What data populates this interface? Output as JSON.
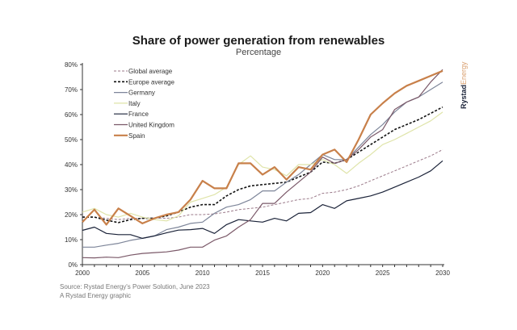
{
  "chart_data": {
    "type": "line",
    "title": "Share of power generation from renewables",
    "subtitle": "Percentage",
    "xlabel": "",
    "ylabel": "",
    "xlim": [
      2000,
      2030
    ],
    "ylim": [
      0,
      80
    ],
    "x_ticks": [
      "2000",
      "2005",
      "2010",
      "2015",
      "2020",
      "2025",
      "2030"
    ],
    "y_ticks": [
      "0%",
      "10%",
      "20%",
      "30%",
      "40%",
      "50%",
      "60%",
      "70%",
      "80%"
    ],
    "legend_placement": "top-left",
    "x": [
      2000,
      2001,
      2002,
      2003,
      2004,
      2005,
      2006,
      2007,
      2008,
      2009,
      2010,
      2011,
      2012,
      2013,
      2014,
      2015,
      2016,
      2017,
      2018,
      2019,
      2020,
      2021,
      2022,
      2023,
      2024,
      2025,
      2026,
      2027,
      2028,
      2029,
      2030
    ],
    "series": [
      {
        "name": "Global average",
        "color": "#9b7a8a",
        "dash": "dashed-thin",
        "values": [
          19,
          19,
          18.5,
          18,
          18.5,
          18.5,
          18.7,
          18.5,
          19,
          20,
          20,
          20.3,
          21,
          22,
          22.5,
          23,
          24,
          25,
          26,
          26.5,
          28.5,
          29,
          30,
          31.5,
          33.5,
          35.5,
          37.5,
          39.5,
          41.5,
          43.5,
          46
        ]
      },
      {
        "name": "Europe average",
        "color": "#111111",
        "dash": "dashed-thick",
        "values": [
          19,
          19,
          17.8,
          16.8,
          18,
          18.5,
          18.5,
          19.5,
          21,
          23,
          24,
          24,
          27.5,
          30,
          31.5,
          32,
          32.5,
          33,
          35,
          37,
          41,
          40.5,
          42,
          45,
          48,
          51,
          54,
          56,
          58,
          60.5,
          63
        ]
      },
      {
        "name": "Germany",
        "color": "#7d8599",
        "dash": "solid",
        "values": [
          7,
          7,
          7.8,
          8.5,
          9.7,
          10.5,
          11.5,
          14,
          15,
          16.5,
          17,
          20.5,
          23,
          24,
          26,
          29.5,
          29.5,
          33,
          36,
          40,
          44,
          42,
          42,
          47,
          52,
          56,
          61,
          65,
          67,
          70,
          73
        ]
      },
      {
        "name": "Italy",
        "color": "#dfe4a9",
        "dash": "solid",
        "values": [
          21,
          22.5,
          20,
          19,
          20.5,
          19,
          18,
          17.5,
          19.5,
          25,
          26.5,
          28,
          31,
          40,
          43.5,
          39,
          38,
          35.5,
          40,
          40,
          42,
          40,
          36.5,
          40.5,
          44,
          48,
          50,
          52.5,
          55,
          57.5,
          61
        ]
      },
      {
        "name": "France",
        "color": "#1a2238",
        "dash": "solid",
        "values": [
          13.7,
          15,
          12.5,
          12,
          12,
          10.5,
          11.5,
          12.7,
          13.8,
          14,
          14.5,
          12.5,
          16,
          18,
          17.5,
          17,
          18.5,
          17.5,
          20.5,
          20.8,
          24,
          22.5,
          25.5,
          26.5,
          27.5,
          29,
          31,
          33,
          35,
          37.5,
          41.5
        ]
      },
      {
        "name": "United Kingdom",
        "color": "#7a5868",
        "dash": "solid",
        "values": [
          2.8,
          2.7,
          3,
          2.8,
          3.8,
          4.5,
          4.8,
          5.1,
          5.8,
          7,
          7,
          9.8,
          11.5,
          15,
          18,
          24.5,
          24.5,
          29,
          33,
          37,
          43,
          40.5,
          42,
          46,
          51,
          54,
          62,
          65,
          67,
          73,
          78
        ]
      },
      {
        "name": "Spain",
        "color": "#c8804a",
        "dash": "solid-thick",
        "values": [
          17,
          22,
          16,
          22.5,
          19.5,
          16.5,
          18.5,
          20,
          21,
          26,
          33.5,
          30.5,
          30.5,
          40.5,
          40.5,
          36,
          39,
          34,
          39,
          38,
          44,
          46,
          41,
          50,
          60,
          64.5,
          68.5,
          71.5,
          73.5,
          75.5,
          77.5
        ]
      }
    ]
  },
  "footer": {
    "source": "Source: Rystad Energy's Power Solution, June 2023",
    "credit": "A Rystad Energy graphic"
  },
  "logo": {
    "part1": "Rystad",
    "part2": "Energy"
  }
}
